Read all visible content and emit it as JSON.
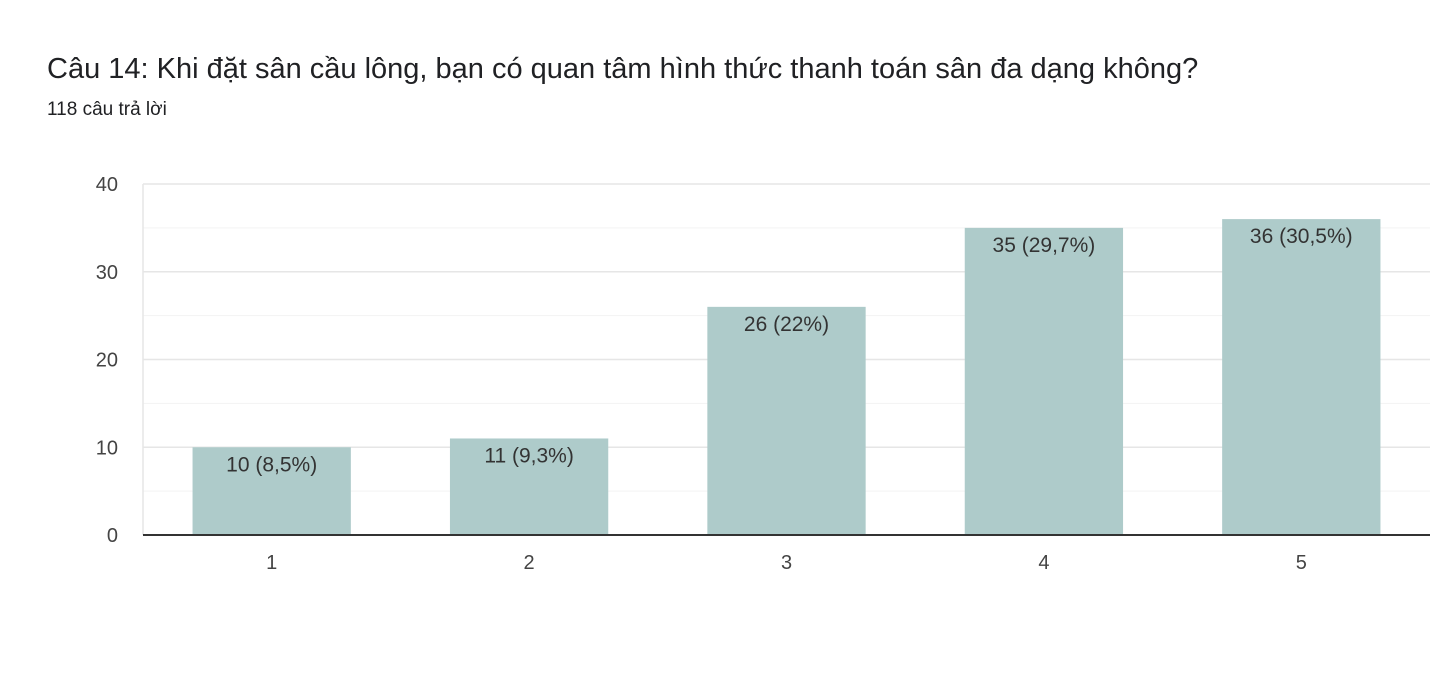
{
  "question": {
    "title": "Câu 14: Khi đặt sân cầu lông, bạn có quan tâm hình thức thanh toán sân đa dạng không?",
    "response_count": "118 câu trả lời"
  },
  "colors": {
    "bar": "#aecbca",
    "axis": "#333333",
    "grid_major": "#e6e6e6",
    "grid_minor": "#f3f3f3"
  },
  "chart_data": {
    "type": "bar",
    "categories": [
      "1",
      "2",
      "3",
      "4",
      "5"
    ],
    "values": [
      10,
      11,
      26,
      35,
      36
    ],
    "data_labels": [
      "10 (8,5%)",
      "11 (9,3%)",
      "26 (22%)",
      "35 (29,7%)",
      "36 (30,5%)"
    ],
    "ylim": [
      0,
      40
    ],
    "yticks": [
      0,
      10,
      20,
      30,
      40
    ],
    "grid": true,
    "xlabel": "",
    "ylabel": ""
  }
}
